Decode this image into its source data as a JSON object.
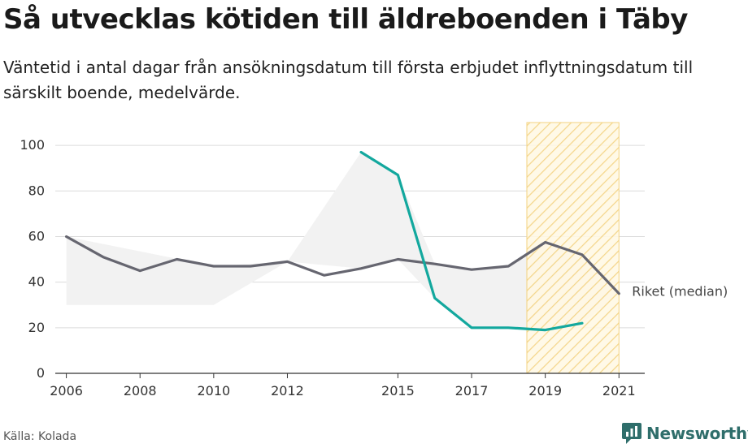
{
  "header": {
    "title": "Så utvecklas kötiden till äldreboenden i Täby",
    "subtitle": "Väntetid i antal dagar från ansökningsdatum till första erbjudet inflyttningsdatum till särskilt boende, medelvärde."
  },
  "footer": {
    "source": "Källa: Kolada",
    "brand": "Newsworthy"
  },
  "chart_data": {
    "type": "line",
    "ylim": [
      0,
      110
    ],
    "xlim": [
      2005.7,
      2021.7
    ],
    "yticks": [
      0,
      20,
      40,
      60,
      80,
      100
    ],
    "xticks": [
      2006,
      2008,
      2010,
      2012,
      2015,
      2017,
      2019,
      2021
    ],
    "highlight_range": [
      2018.5,
      2021
    ],
    "grid": true,
    "series": [
      {
        "name": "",
        "color": "#13a89e",
        "x": [
          2014,
          2015,
          2016,
          2017,
          2018,
          2019,
          2020
        ],
        "y": [
          97,
          87,
          33,
          20,
          20,
          19,
          22
        ]
      },
      {
        "name": "Riket (median)",
        "color": "#666670",
        "x": [
          2006,
          2007,
          2008,
          2009,
          2010,
          2011,
          2012,
          2013,
          2014,
          2015,
          2016,
          2017,
          2018,
          2019,
          2020,
          2021
        ],
        "y": [
          60,
          51,
          45,
          50,
          47,
          47,
          49,
          43,
          46,
          50,
          48,
          45.5,
          47,
          57.5,
          52,
          35
        ]
      }
    ],
    "band": {
      "x": [
        2006,
        2010,
        2012,
        2014,
        2015,
        2016,
        2017,
        2018,
        2019,
        2020,
        2021
      ],
      "lower": [
        30,
        30,
        49,
        46,
        50,
        33,
        20,
        20,
        19,
        22,
        35
      ],
      "upper": [
        60,
        47,
        49,
        97,
        87,
        48,
        45.5,
        47,
        57.5,
        52,
        35
      ],
      "color": "#f2f2f2"
    }
  }
}
